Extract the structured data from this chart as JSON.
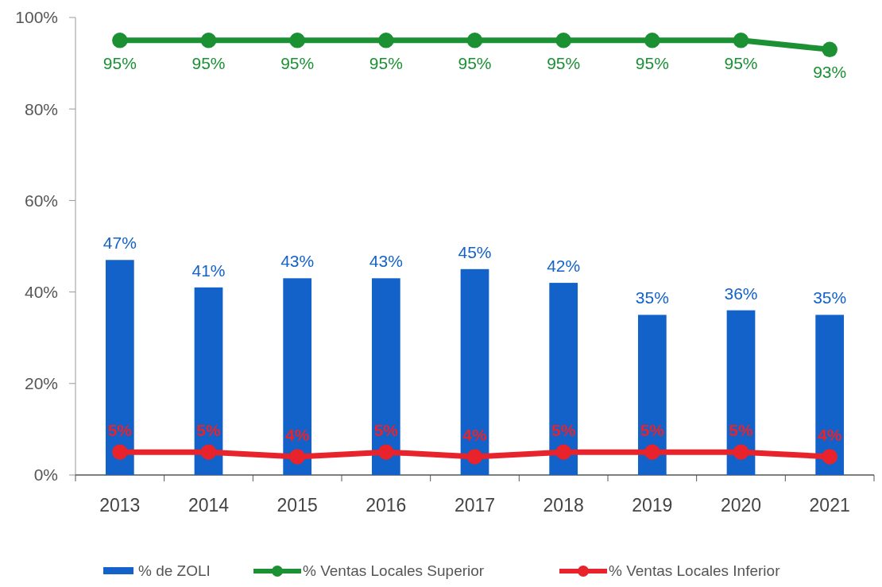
{
  "chart_data": {
    "type": "bar",
    "categories": [
      "2013",
      "2014",
      "2015",
      "2016",
      "2017",
      "2018",
      "2019",
      "2020",
      "2021"
    ],
    "series": [
      {
        "name": "% de ZOLI",
        "color": "#1262c9",
        "values": [
          47,
          41,
          43,
          43,
          45,
          42,
          35,
          36,
          35
        ],
        "value_labels": [
          "47%",
          "41%",
          "43%",
          "43%",
          "45%",
          "42%",
          "35%",
          "36%",
          "35%"
        ]
      },
      {
        "name": "% Ventas Locales Superior",
        "type": "line",
        "color": "#1b9134",
        "marker": "circle",
        "values": [
          95,
          95,
          95,
          95,
          95,
          95,
          95,
          95,
          93
        ],
        "value_labels": [
          "95%",
          "95%",
          "95%",
          "95%",
          "95%",
          "95%",
          "95%",
          "95%",
          "93%"
        ]
      },
      {
        "name": "% Ventas Locales Inferior",
        "type": "line",
        "color": "#e8232b",
        "marker": "circle",
        "values": [
          5,
          5,
          4,
          5,
          4,
          5,
          5,
          5,
          4
        ],
        "value_labels": [
          "5%",
          "5%",
          "4%",
          "5%",
          "4%",
          "5%",
          "5%",
          "5%",
          "4%"
        ]
      }
    ],
    "ylim": [
      0,
      100
    ],
    "yticks": [
      {
        "value": 0,
        "label": "0%"
      },
      {
        "value": 20,
        "label": "20%"
      },
      {
        "value": 40,
        "label": "40%"
      },
      {
        "value": 60,
        "label": "60%"
      },
      {
        "value": 80,
        "label": "80%"
      },
      {
        "value": 100,
        "label": "100%"
      }
    ],
    "grid": false,
    "legend": "bottom"
  }
}
